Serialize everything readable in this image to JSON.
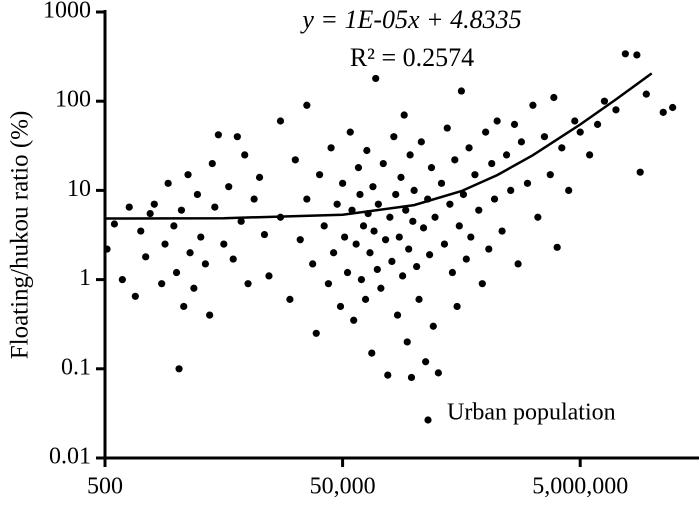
{
  "chart_data": {
    "type": "scatter",
    "y_label": "Floating/hukou ratio (%)",
    "annotations": [
      "y = 1E-05x + 4.8335",
      "R² = 0.2574"
    ],
    "xlog": true,
    "ylog": true,
    "xlim": [
      500,
      50000000
    ],
    "ylim": [
      0.01,
      1000
    ],
    "xticks": [
      500,
      {
        "value": 50000,
        "label": "50,000"
      },
      {
        "value": 5000000,
        "label": "5,000,000"
      }
    ],
    "yticks": [
      1000,
      100,
      10,
      1,
      0.1,
      0.01
    ],
    "legend": "bottom-right",
    "series": [
      {
        "name": "Urban population",
        "color": "#000000",
        "x": [
          520,
          600,
          800,
          700,
          900,
          1000,
          1100,
          1200,
          1300,
          1500,
          1600,
          1700,
          1900,
          2000,
          2100,
          2200,
          2300,
          2500,
          2600,
          2800,
          3000,
          3200,
          3500,
          3800,
          4000,
          4200,
          4500,
          5000,
          5500,
          6000,
          6500,
          7000,
          7500,
          8000,
          9000,
          10000,
          11000,
          12000,
          15000,
          15000,
          18000,
          20000,
          22000,
          25000,
          25000,
          28000,
          30000,
          32000,
          35000,
          38000,
          40000,
          42000,
          45000,
          48000,
          50000,
          52000,
          55000,
          58000,
          60000,
          62000,
          65000,
          68000,
          70000,
          72000,
          75000,
          78000,
          80000,
          82000,
          85000,
          88000,
          90000,
          92000,
          95000,
          98000,
          100000,
          105000,
          110000,
          115000,
          120000,
          125000,
          130000,
          135000,
          140000,
          145000,
          150000,
          155000,
          160000,
          165000,
          170000,
          175000,
          180000,
          185000,
          190000,
          195000,
          200000,
          210000,
          220000,
          230000,
          240000,
          250000,
          260000,
          270000,
          280000,
          290000,
          300000,
          320000,
          340000,
          360000,
          380000,
          400000,
          420000,
          440000,
          460000,
          480000,
          500000,
          520000,
          550000,
          580000,
          600000,
          650000,
          700000,
          750000,
          800000,
          850000,
          900000,
          950000,
          1000000,
          1100000,
          1200000,
          1300000,
          1400000,
          1500000,
          1600000,
          1800000,
          2000000,
          2200000,
          2500000,
          2800000,
          3000000,
          3200000,
          3500000,
          4000000,
          4500000,
          5000000,
          6000000,
          7000000,
          8000000,
          10000000,
          12000000,
          15000000,
          16000000,
          18000000,
          25000000,
          30000000
        ],
        "values": [
          2.2,
          4.2,
          6.5,
          1.0,
          0.65,
          3.5,
          1.8,
          5.5,
          7.0,
          0.9,
          2.5,
          12,
          4.0,
          1.2,
          0.1,
          6.0,
          0.5,
          15,
          2.0,
          0.8,
          9.0,
          3.0,
          1.5,
          0.4,
          20,
          6.5,
          42,
          2.5,
          11,
          1.7,
          40,
          4.5,
          25,
          0.9,
          8,
          14,
          3.2,
          1.1,
          60,
          5,
          0.6,
          22,
          2.8,
          90,
          8,
          1.5,
          0.25,
          15,
          4,
          0.9,
          30,
          2,
          7,
          0.5,
          12,
          3,
          1.2,
          45,
          6,
          0.35,
          2.5,
          18,
          9,
          1.0,
          4,
          0.6,
          28,
          5.5,
          2,
          0.15,
          11,
          3.5,
          180,
          1.3,
          7,
          0.8,
          20,
          2.8,
          0.085,
          5,
          1.6,
          40,
          9,
          0.4,
          3,
          14,
          1.1,
          70,
          6,
          0.2,
          2.2,
          25,
          0.08,
          4.5,
          10,
          1.4,
          0.6,
          35,
          3.8,
          0.12,
          8,
          1.9,
          18,
          0.3,
          5,
          0.09,
          12,
          2.5,
          50,
          7,
          1.2,
          22,
          0.5,
          4,
          130,
          9,
          1.7,
          30,
          3,
          15,
          6,
          0.9,
          45,
          2.2,
          20,
          8,
          60,
          3.5,
          25,
          10,
          55,
          1.5,
          35,
          12,
          90,
          5,
          40,
          15,
          110,
          2.3,
          30,
          10,
          60,
          45,
          25,
          55,
          100,
          80,
          340,
          330,
          16,
          120,
          75,
          85
        ]
      }
    ],
    "trendline": {
      "x": [
        500,
        5000,
        50000,
        200000,
        500000,
        1000000,
        2000000,
        5000000,
        10000000,
        20000000
      ],
      "values": [
        4.8385,
        4.8835,
        5.3335,
        6.8335,
        9.8335,
        14.8335,
        24.8335,
        54.8335,
        104.8335,
        204.8335
      ]
    }
  }
}
